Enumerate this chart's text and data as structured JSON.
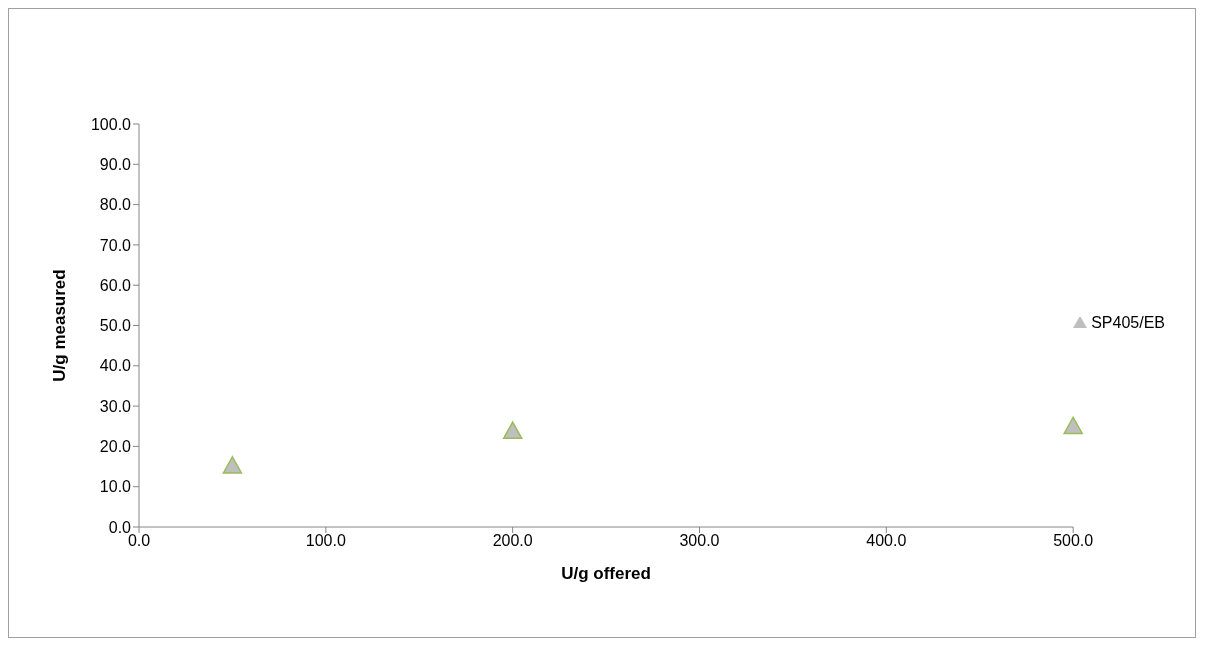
{
  "chart_data": {
    "type": "scatter",
    "xlabel": "U/g offered",
    "ylabel": "U/g measured",
    "x": [
      50,
      200,
      500
    ],
    "series": [
      {
        "name": "SP405/EB",
        "color": "#9bbb59",
        "values": [
          15.2,
          23.8,
          25.0
        ]
      }
    ],
    "xlim": [
      0,
      500
    ],
    "xticks": [
      {
        "value": 0,
        "label": "0.0"
      },
      {
        "value": 100,
        "label": "100.0"
      },
      {
        "value": 200,
        "label": "200.0"
      },
      {
        "value": 300,
        "label": "300.0"
      },
      {
        "value": 400,
        "label": "400.0"
      },
      {
        "value": 500,
        "label": "500.0"
      }
    ],
    "ylim": [
      0,
      100
    ],
    "yticks": [
      {
        "value": 0,
        "label": "0.0"
      },
      {
        "value": 10,
        "label": "10.0"
      },
      {
        "value": 20,
        "label": "20.0"
      },
      {
        "value": 30,
        "label": "30.0"
      },
      {
        "value": 40,
        "label": "40.0"
      },
      {
        "value": 50,
        "label": "50.0"
      },
      {
        "value": 60,
        "label": "60.0"
      },
      {
        "value": 70,
        "label": "70.0"
      },
      {
        "value": 80,
        "label": "80.0"
      },
      {
        "value": 90,
        "label": "90.0"
      },
      {
        "value": 100,
        "label": "100.0"
      }
    ],
    "grid": false,
    "legend": "right",
    "marker": "triangle"
  }
}
